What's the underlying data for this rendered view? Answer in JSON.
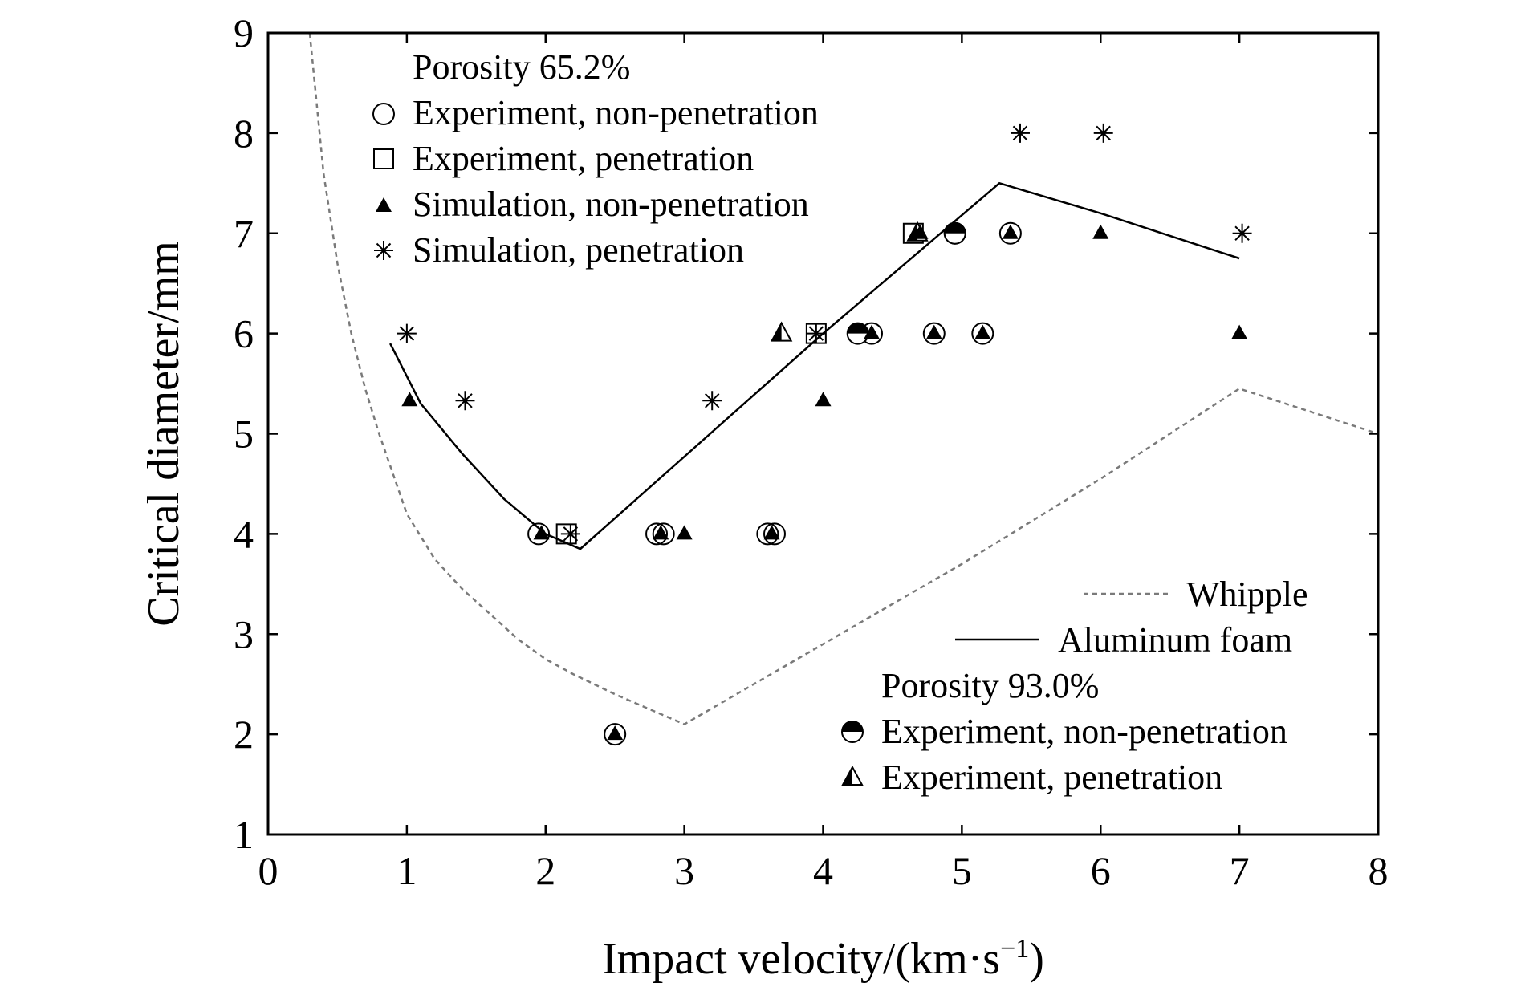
{
  "chart_data": {
    "type": "scatter",
    "xlabel": "Impact velocity/(km·s",
    "xlabel_sup": "−1",
    "xlabel_end": ")",
    "ylabel": "Critical diameter/mm",
    "xlim": [
      0,
      8
    ],
    "ylim": [
      1,
      9
    ],
    "xticks": [
      "0",
      "1",
      "2",
      "3",
      "4",
      "5",
      "6",
      "7",
      "8"
    ],
    "yticks": [
      "1",
      "2",
      "3",
      "4",
      "5",
      "6",
      "7",
      "8",
      "9"
    ],
    "grid": false,
    "legend_top": {
      "title": "Porosity 65.2%",
      "entries": [
        "Experiment, non-penetration",
        "Experiment, penetration",
        "Simulation, non-penetration",
        "Simulation, penetration"
      ]
    },
    "legend_bottom": {
      "lines": [
        "Whipple",
        "Aluminum foam"
      ],
      "title": "Porosity 93.0%",
      "entries": [
        "Experiment, non-penetration",
        "Experiment, penetration"
      ]
    },
    "lines": [
      {
        "name": "Whipple",
        "style": "dashed",
        "color": "#7a7a7a",
        "points": [
          [
            0.3,
            9.0
          ],
          [
            0.4,
            7.6
          ],
          [
            0.5,
            6.7
          ],
          [
            0.6,
            6.0
          ],
          [
            0.7,
            5.45
          ],
          [
            0.8,
            5.0
          ],
          [
            1.0,
            4.2
          ],
          [
            1.2,
            3.75
          ],
          [
            1.4,
            3.45
          ],
          [
            1.6,
            3.2
          ],
          [
            1.8,
            2.95
          ],
          [
            2.0,
            2.75
          ],
          [
            2.2,
            2.6
          ],
          [
            2.5,
            2.4
          ],
          [
            2.75,
            2.25
          ],
          [
            3.0,
            2.1
          ],
          [
            4.0,
            2.9
          ],
          [
            5.0,
            3.7
          ],
          [
            6.0,
            4.55
          ],
          [
            7.0,
            5.45
          ],
          [
            8.0,
            5.0
          ]
        ]
      },
      {
        "name": "Aluminum foam",
        "style": "solid",
        "color": "#000000",
        "points": [
          [
            0.88,
            5.9
          ],
          [
            1.1,
            5.3
          ],
          [
            1.4,
            4.8
          ],
          [
            1.7,
            4.35
          ],
          [
            2.0,
            4.0
          ],
          [
            2.25,
            3.85
          ],
          [
            4.0,
            6.0
          ],
          [
            5.27,
            7.5
          ],
          [
            6.0,
            7.2
          ],
          [
            7.0,
            6.75
          ]
        ]
      }
    ],
    "series": [
      {
        "name": "Porosity 65.2%: Experiment, non-penetration",
        "marker": "circle",
        "points": [
          [
            1.95,
            4.0
          ],
          [
            2.8,
            4.0
          ],
          [
            2.85,
            4.0
          ],
          [
            3.6,
            4.0
          ],
          [
            3.65,
            4.0
          ],
          [
            2.5,
            2.0
          ],
          [
            4.35,
            6.0
          ],
          [
            4.8,
            6.0
          ],
          [
            5.15,
            6.0
          ],
          [
            4.95,
            7.0
          ],
          [
            5.35,
            7.0
          ]
        ]
      },
      {
        "name": "Porosity 65.2%: Experiment, penetration",
        "marker": "square",
        "points": [
          [
            2.15,
            4.0
          ],
          [
            3.95,
            6.0
          ],
          [
            4.65,
            7.0
          ]
        ]
      },
      {
        "name": "Porosity 65.2%: Simulation, non-penetration",
        "marker": "triangle",
        "points": [
          [
            1.02,
            5.33
          ],
          [
            1.97,
            4.0
          ],
          [
            2.83,
            4.0
          ],
          [
            3.0,
            4.0
          ],
          [
            3.63,
            4.0
          ],
          [
            2.5,
            2.0
          ],
          [
            4.0,
            5.33
          ],
          [
            4.35,
            6.0
          ],
          [
            4.8,
            6.0
          ],
          [
            5.15,
            6.0
          ],
          [
            4.7,
            7.0
          ],
          [
            5.35,
            7.0
          ],
          [
            6.0,
            7.0
          ],
          [
            7.0,
            6.0
          ]
        ]
      },
      {
        "name": "Porosity 65.2%: Simulation, penetration",
        "marker": "asterisk",
        "points": [
          [
            1.0,
            6.0
          ],
          [
            1.42,
            5.33
          ],
          [
            2.18,
            4.0
          ],
          [
            3.2,
            5.33
          ],
          [
            3.95,
            6.0
          ],
          [
            5.42,
            8.0
          ],
          [
            6.02,
            8.0
          ],
          [
            7.02,
            7.0
          ]
        ]
      },
      {
        "name": "Porosity 93.0%: Experiment, non-penetration",
        "marker": "half-circle",
        "points": [
          [
            4.25,
            6.0
          ],
          [
            4.95,
            7.0
          ]
        ]
      },
      {
        "name": "Porosity 93.0%: Experiment, penetration",
        "marker": "half-triangle",
        "points": [
          [
            3.7,
            6.0
          ],
          [
            4.68,
            7.0
          ]
        ]
      }
    ]
  }
}
